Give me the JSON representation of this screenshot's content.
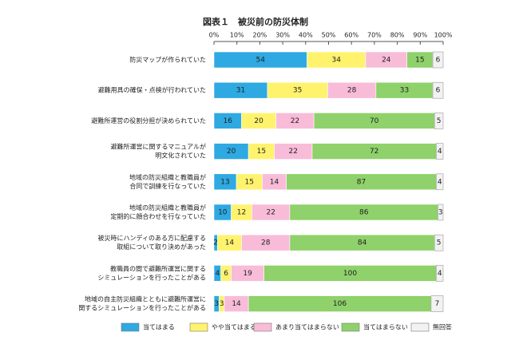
{
  "chart_data": {
    "type": "stacked-bar-horizontal",
    "title": "図表１　被災前の防災体制",
    "categories": [
      [
        "防災マップが作られていた"
      ],
      [
        "避難用具の確保・点検が行われていた"
      ],
      [
        "避難所運営の役割分担が決められていた"
      ],
      [
        "避難所運営に関するマニュアルが",
        "明文化されていた"
      ],
      [
        "地域の防災組織と教職員が",
        "合同で訓練を行なっていた"
      ],
      [
        "地域の防災組織と教職員が",
        "定期的に顔合わせを行なっていた"
      ],
      [
        "被災時にハンディのある方に配慮する",
        "取組について取り決めがあった"
      ],
      [
        "教職員の間で避難所運営に関する",
        "シミュレーションを行ったことがある"
      ],
      [
        "地域の自主防災組織とともに避難所運営に",
        "関するシミュレーションを行ったことがある"
      ]
    ],
    "series": [
      {
        "name": "当てはまる",
        "color": "#2ea9e2",
        "values": [
          54,
          31,
          16,
          20,
          13,
          10,
          2,
          4,
          3
        ]
      },
      {
        "name": "やや当てはまる",
        "color": "#fff36e",
        "values": [
          34,
          35,
          20,
          15,
          15,
          12,
          14,
          6,
          3
        ]
      },
      {
        "name": "あまり当てはまらない",
        "color": "#f8bcd8",
        "values": [
          24,
          28,
          22,
          22,
          14,
          22,
          28,
          19,
          14
        ]
      },
      {
        "name": "当てはまらない",
        "color": "#8fd16a",
        "values": [
          15,
          33,
          70,
          72,
          87,
          86,
          84,
          100,
          106
        ]
      },
      {
        "name": "無回答",
        "color": "#f2f2f2",
        "values": [
          6,
          6,
          5,
          4,
          4,
          3,
          5,
          4,
          7
        ]
      }
    ],
    "xlim": [
      0,
      133
    ],
    "xticks": [
      {
        "value": 0,
        "label": "0%"
      },
      {
        "value": 13.3,
        "label": "10%"
      },
      {
        "value": 26.6,
        "label": "20%"
      },
      {
        "value": 39.9,
        "label": "30%"
      },
      {
        "value": 53.2,
        "label": "40%"
      },
      {
        "value": 66.5,
        "label": "50%"
      },
      {
        "value": 79.8,
        "label": "60%"
      },
      {
        "value": 93.1,
        "label": "70%"
      },
      {
        "value": 106.4,
        "label": "80%"
      },
      {
        "value": 119.7,
        "label": "90%"
      },
      {
        "value": 133,
        "label": "100%"
      }
    ]
  }
}
